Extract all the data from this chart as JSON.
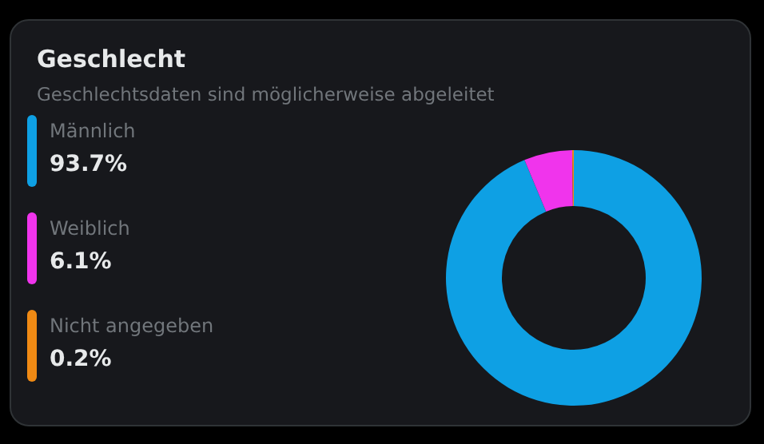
{
  "chart_data": {
    "type": "donut",
    "title": "Geschlecht",
    "subtitle": "Geschlechtsdaten sind möglicherweise abgeleitet",
    "categories": [
      "Männlich",
      "Weiblich",
      "Nicht angegeben"
    ],
    "values": [
      93.7,
      6.1,
      0.2
    ],
    "value_labels": [
      "93.7%",
      "6.1%",
      "0.2%"
    ],
    "colors": [
      "#0ea0e4",
      "#f034ec",
      "#f08a14"
    ],
    "legend": "left"
  }
}
